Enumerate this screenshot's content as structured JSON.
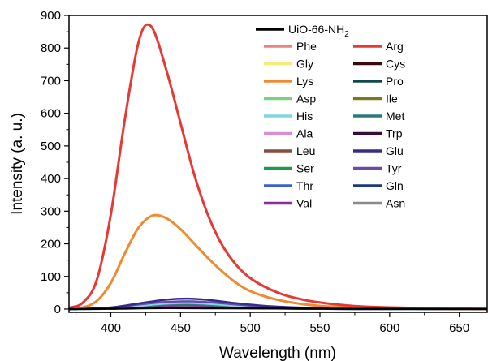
{
  "chart_data": {
    "type": "line",
    "xlabel": "Wavelength (nm)",
    "ylabel": "Intensity (a. u.)",
    "xlim": [
      370,
      670
    ],
    "ylim": [
      -10,
      900
    ],
    "xticks": [
      400,
      450,
      500,
      550,
      600,
      650
    ],
    "yticks": [
      0,
      100,
      200,
      300,
      400,
      500,
      600,
      700,
      800,
      900
    ],
    "grid": false,
    "legend_position": "top-right",
    "legend_header": {
      "name": "UiO-66-NH",
      "subscript": "2",
      "color": "#000000"
    },
    "legend_left": [
      {
        "name": "Phe",
        "color": "#f08080"
      },
      {
        "name": "Gly",
        "color": "#f5ea7a"
      },
      {
        "name": "Lys",
        "color": "#f08a2e"
      },
      {
        "name": "Asp",
        "color": "#7fcf7f"
      },
      {
        "name": "His",
        "color": "#7fd8e0"
      },
      {
        "name": "Ala",
        "color": "#d68fd0"
      },
      {
        "name": "Leu",
        "color": "#8b4a3a"
      },
      {
        "name": "Ser",
        "color": "#1f9a4a"
      },
      {
        "name": "Thr",
        "color": "#3a5fcd"
      },
      {
        "name": "Val",
        "color": "#8e2b9e"
      }
    ],
    "legend_right": [
      {
        "name": "Arg",
        "color": "#e53935"
      },
      {
        "name": "Cys",
        "color": "#3a0a0a"
      },
      {
        "name": "Pro",
        "color": "#0a4a4a"
      },
      {
        "name": "Ile",
        "color": "#7a7a1a"
      },
      {
        "name": "Met",
        "color": "#2a7a7a"
      },
      {
        "name": "Trp",
        "color": "#3a0a3a"
      },
      {
        "name": "Glu",
        "color": "#3a2a8a"
      },
      {
        "name": "Tyr",
        "color": "#6a4ab0"
      },
      {
        "name": "Gln",
        "color": "#1a3a7a"
      },
      {
        "name": "Asn",
        "color": "#8a8a8a"
      }
    ],
    "series": [
      {
        "name": "UiO-66-NH2",
        "color": "#000000",
        "x": [
          370,
          400,
          440,
          500,
          560,
          670
        ],
        "y": [
          0,
          1,
          3,
          2,
          1,
          0
        ]
      },
      {
        "name": "Arg",
        "color": "#e53935",
        "x": [
          370,
          380,
          390,
          400,
          410,
          420,
          426,
          430,
          440,
          450,
          460,
          470,
          480,
          490,
          500,
          520,
          540,
          560,
          580,
          600,
          630,
          670
        ],
        "y": [
          3,
          20,
          90,
          290,
          580,
          820,
          872,
          860,
          730,
          570,
          410,
          285,
          195,
          135,
          95,
          50,
          27,
          15,
          8,
          5,
          2,
          1
        ]
      },
      {
        "name": "Lys",
        "color": "#f08a2e",
        "x": [
          370,
          380,
          390,
          400,
          410,
          420,
          432,
          440,
          450,
          460,
          470,
          480,
          490,
          500,
          520,
          540,
          560,
          580,
          600,
          630,
          670
        ],
        "y": [
          1,
          5,
          25,
          80,
          170,
          250,
          288,
          278,
          245,
          200,
          155,
          115,
          80,
          55,
          28,
          14,
          7,
          4,
          2,
          1,
          0
        ]
      },
      {
        "name": "Glu",
        "color": "#3a2a8a",
        "x": [
          370,
          400,
          420,
          440,
          455,
          470,
          490,
          510,
          540,
          580,
          670
        ],
        "y": [
          0,
          5,
          17,
          29,
          32,
          28,
          18,
          10,
          4,
          1,
          0
        ]
      },
      {
        "name": "Tyr",
        "color": "#6a4ab0",
        "x": [
          370,
          400,
          420,
          440,
          455,
          470,
          490,
          510,
          540,
          580,
          670
        ],
        "y": [
          0,
          4,
          14,
          22,
          24,
          21,
          14,
          8,
          3,
          1,
          0
        ]
      },
      {
        "name": "His",
        "color": "#7fd8e0",
        "x": [
          370,
          400,
          420,
          440,
          455,
          470,
          490,
          510,
          540,
          580,
          670
        ],
        "y": [
          0,
          3,
          10,
          17,
          19,
          16,
          10,
          6,
          2,
          1,
          0
        ]
      },
      {
        "name": "Met",
        "color": "#2a7a7a",
        "x": [
          370,
          400,
          420,
          440,
          455,
          470,
          490,
          510,
          540,
          580,
          670
        ],
        "y": [
          0,
          2,
          8,
          13,
          14,
          12,
          8,
          4,
          2,
          0,
          0
        ]
      },
      {
        "name": "Val",
        "color": "#8e2b9e",
        "x": [
          370,
          400,
          420,
          440,
          455,
          470,
          490,
          510,
          540,
          580,
          670
        ],
        "y": [
          0,
          2,
          6,
          10,
          11,
          9,
          6,
          3,
          1,
          0,
          0
        ]
      },
      {
        "name": "Asp",
        "color": "#7fcf7f",
        "x": [
          370,
          400,
          420,
          440,
          455,
          470,
          490,
          510,
          540,
          580,
          670
        ],
        "y": [
          0,
          1,
          5,
          8,
          9,
          7,
          5,
          3,
          1,
          0,
          0
        ]
      },
      {
        "name": "Thr",
        "color": "#3a5fcd",
        "x": [
          370,
          400,
          420,
          440,
          455,
          470,
          490,
          510,
          540,
          580,
          670
        ],
        "y": [
          0,
          1,
          4,
          6,
          7,
          6,
          4,
          2,
          1,
          0,
          0
        ]
      }
    ]
  }
}
